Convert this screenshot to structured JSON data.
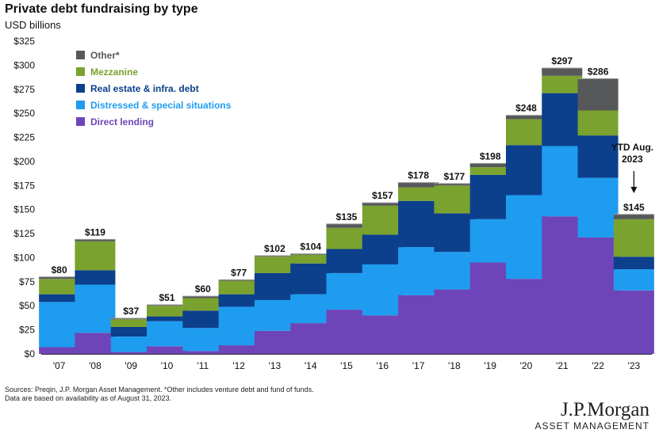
{
  "chart_data": {
    "type": "bar",
    "stacked": true,
    "title": "Private debt fundraising by type",
    "subtitle": "USD billions",
    "categories": [
      "'07",
      "'08",
      "'09",
      "'10",
      "'11",
      "'12",
      "'13",
      "'14",
      "'15",
      "'16",
      "'17",
      "'18",
      "'19",
      "'20",
      "'21",
      "'22",
      "'23"
    ],
    "ylim": [
      0,
      325
    ],
    "yticks": [
      0,
      25,
      50,
      75,
      100,
      125,
      150,
      175,
      200,
      225,
      250,
      275,
      300,
      325
    ],
    "ytick_labels": [
      "$0",
      "$25",
      "$50",
      "$75",
      "$100",
      "$125",
      "$150",
      "$175",
      "$200",
      "$225",
      "$250",
      "$275",
      "$300",
      "$325"
    ],
    "grid": false,
    "legend_position": "top-left",
    "series": [
      {
        "name": "Direct lending",
        "color": "#6e45b8",
        "values": [
          7,
          22,
          2,
          8,
          3,
          9,
          24,
          32,
          46,
          40,
          61,
          67,
          95,
          78,
          143,
          121,
          66
        ]
      },
      {
        "name": "Distressed & special situations",
        "color": "#1e9cf0",
        "values": [
          47,
          50,
          16,
          26,
          24,
          40,
          32,
          30,
          38,
          53,
          50,
          39,
          45,
          87,
          73,
          62,
          22
        ]
      },
      {
        "name": "Real estate & infra. debt",
        "color": "#0c3f8c",
        "values": [
          8,
          15,
          10,
          5,
          18,
          13,
          28,
          32,
          25,
          31,
          48,
          40,
          46,
          52,
          55,
          44,
          13
        ]
      },
      {
        "name": "Mezzanine",
        "color": "#7aa22e",
        "values": [
          16,
          30,
          8,
          11,
          13,
          14,
          17,
          9,
          22,
          30,
          14,
          29,
          8,
          27,
          18,
          26,
          39
        ]
      },
      {
        "name": "Other*",
        "color": "#56585a",
        "values": [
          2,
          2,
          1,
          1,
          2,
          1,
          1,
          1,
          4,
          3,
          5,
          2,
          4,
          4,
          8,
          33,
          5
        ]
      }
    ],
    "legend_order": [
      "Other*",
      "Mezzanine",
      "Real estate & infra. debt",
      "Distressed & special situations",
      "Direct lending"
    ],
    "total_labels": [
      "$80",
      "$119",
      "$37",
      "$51",
      "$60",
      "$77",
      "$102",
      "$104",
      "$135",
      "$157",
      "$178",
      "$177",
      "$198",
      "$248",
      "$297",
      "$286",
      "$145"
    ],
    "annotation": {
      "lines": [
        "YTD Aug.",
        "2023"
      ],
      "category": "'23"
    }
  },
  "footnote": {
    "line1": "Sources: Preqin, J.P. Morgan Asset Management. *Other includes venture debt and fund of funds.",
    "line2": "Data are based on availability as of August 31, 2023."
  },
  "logo": {
    "name": "J.P.Morgan",
    "subtitle": "ASSET MANAGEMENT"
  }
}
